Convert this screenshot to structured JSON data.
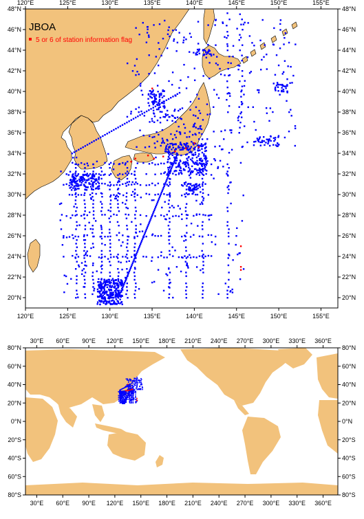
{
  "colors": {
    "land": "#f2c27c",
    "ocean": "#ffffff",
    "station": "#0000ff",
    "flagged": "#ff0000",
    "frame": "#000000"
  },
  "legend": {
    "title": "JBOA",
    "flag_label": "5 or 6 of station information flag"
  },
  "top_map": {
    "lon_range": [
      120,
      157
    ],
    "lat_range": [
      19,
      48
    ],
    "x_ticks": [
      "120°E",
      "125°E",
      "130°E",
      "135°E",
      "140°E",
      "145°E",
      "150°E",
      "155°E"
    ],
    "y_ticks": [
      "20°N",
      "22°N",
      "24°N",
      "26°N",
      "28°N",
      "30°N",
      "32°N",
      "34°N",
      "36°N",
      "38°N",
      "40°N",
      "42°N",
      "44°N",
      "46°N",
      "48°N"
    ]
  },
  "bottom_map": {
    "lon_range": [
      17,
      377
    ],
    "lat_range": [
      -80,
      80
    ],
    "x_ticks": [
      "30°E",
      "60°E",
      "90°E",
      "120°E",
      "150°E",
      "180°E",
      "210°E",
      "240°E",
      "270°E",
      "300°E",
      "330°E",
      "360°E"
    ],
    "y_ticks": [
      "80°S",
      "60°S",
      "40°S",
      "20°S",
      "0°N",
      "20°N",
      "40°N",
      "60°N",
      "80°N"
    ]
  }
}
